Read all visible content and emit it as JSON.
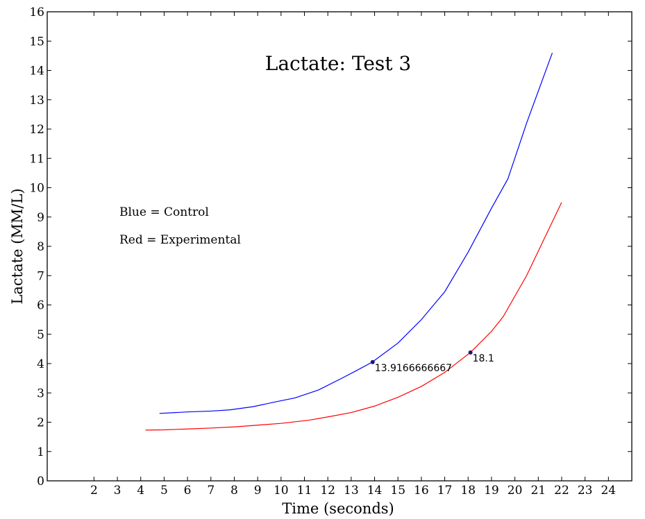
{
  "chart_data": {
    "type": "line",
    "title": "Lactate: Test 3",
    "xlabel": "Time (seconds)",
    "ylabel": "Lactate (MM/L)",
    "xlim": [
      0,
      25
    ],
    "ylim": [
      0,
      16
    ],
    "xticks": [
      2,
      3,
      4,
      5,
      6,
      7,
      8,
      9,
      10,
      11,
      12,
      13,
      14,
      15,
      16,
      17,
      18,
      19,
      20,
      21,
      22,
      23,
      24
    ],
    "yticks": [
      0,
      1,
      2,
      3,
      4,
      5,
      6,
      7,
      8,
      9,
      10,
      11,
      12,
      13,
      14,
      15,
      16
    ],
    "grid": false,
    "series": [
      {
        "color": "#0000ff",
        "x": [
          4.8,
          6.0,
          7.0,
          7.8,
          8.8,
          9.8,
          10.6,
          11.6,
          12.6,
          13.2,
          13.9,
          15.0,
          16.0,
          17.0,
          18.0,
          19.0,
          19.7,
          20.5,
          21.6
        ],
        "y": [
          2.3,
          2.35,
          2.38,
          2.42,
          2.53,
          2.7,
          2.83,
          3.1,
          3.5,
          3.75,
          4.05,
          4.7,
          5.5,
          6.45,
          7.8,
          9.3,
          10.3,
          12.2,
          14.6
        ]
      },
      {
        "color": "#ff0000",
        "x": [
          4.2,
          5.0,
          6.0,
          7.0,
          8.0,
          9.0,
          10.0,
          11.2,
          12.0,
          13.0,
          14.0,
          15.0,
          16.0,
          17.0,
          18.1,
          19.0,
          19.5,
          20.5,
          22.0
        ],
        "y": [
          1.73,
          1.74,
          1.77,
          1.8,
          1.84,
          1.9,
          1.96,
          2.07,
          2.18,
          2.33,
          2.55,
          2.85,
          3.22,
          3.7,
          4.38,
          5.1,
          5.6,
          7.0,
          9.5
        ]
      }
    ],
    "annotations": [
      {
        "x": 13.9166666667,
        "y": 4.05,
        "text": "13.9166666667"
      },
      {
        "x": 18.1,
        "y": 4.38,
        "text": "18.1"
      }
    ],
    "notes": [
      "Blue = Control",
      "Red = Experimental"
    ]
  }
}
